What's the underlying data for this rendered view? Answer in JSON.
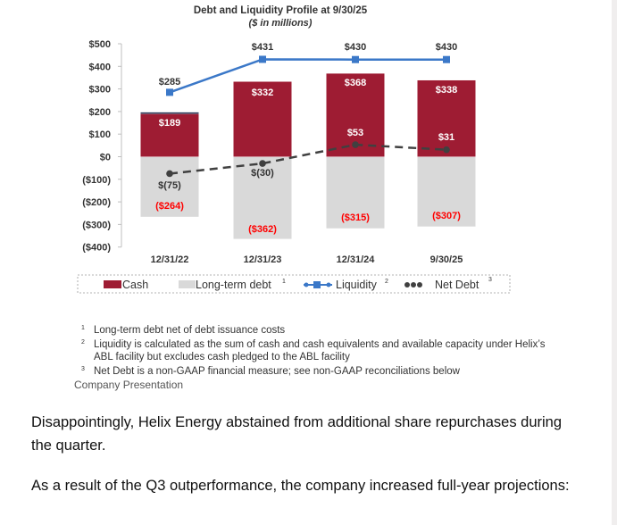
{
  "chart_data": {
    "type": "bar",
    "title": "Debt and Liquidity Profile at 9/30/25",
    "subtitle": "($ in millions)",
    "xlabel": "",
    "ylabel": "",
    "ylim": [
      -400,
      500
    ],
    "yticks": [
      500,
      400,
      300,
      200,
      100,
      0,
      -100,
      -200,
      -300,
      -400
    ],
    "ytick_labels": [
      "$500",
      "$400",
      "$300",
      "$200",
      "$100",
      "$0",
      "($100)",
      "($200)",
      "($300)",
      "($400)"
    ],
    "categories": [
      "12/31/22",
      "12/31/23",
      "12/31/24",
      "9/30/25"
    ],
    "series": [
      {
        "name": "Cash",
        "kind": "bar",
        "color": "#9e1c33",
        "values": [
          189,
          332,
          368,
          338
        ],
        "labels": [
          "$189",
          "$332",
          "$368",
          "$338"
        ]
      },
      {
        "name": "Long-term debt",
        "footnote": "1",
        "kind": "bar",
        "color": "#d9d9d9",
        "values": [
          -264,
          -362,
          -315,
          -307
        ],
        "labels": [
          "($264)",
          "($362)",
          "($315)",
          "($307)"
        ],
        "label_color": "#ff0000"
      },
      {
        "name": "Liquidity",
        "footnote": "2",
        "kind": "line",
        "color": "#3b78c8",
        "values": [
          285,
          431,
          430,
          430
        ],
        "labels": [
          "$285",
          "$431",
          "$430",
          "$430"
        ]
      },
      {
        "name": "Net Debt",
        "footnote": "3",
        "kind": "dashed-line",
        "color": "#404040",
        "values": [
          -75,
          -30,
          53,
          31
        ],
        "labels": [
          "$(75)",
          "$(30)",
          "$53",
          "$31"
        ]
      }
    ],
    "legend_position": "bottom",
    "grid": false
  },
  "footnotes": [
    {
      "num": "1",
      "text": "Long-term debt net of debt issuance costs"
    },
    {
      "num": "2",
      "text": "Liquidity is calculated as the sum of cash and cash equivalents and available capacity under Helix’s ABL facility but excludes cash pledged to the ABL facility"
    },
    {
      "num": "3",
      "text": "Net Debt is a non-GAAP financial measure; see non-GAAP reconciliations below"
    }
  ],
  "caption": "Company Presentation",
  "paragraphs": [
    "Disappointingly, Helix Energy abstained from additional share repurchases during the quarter.",
    "As a result of the Q3 outperformance, the company increased full-year projections:"
  ]
}
